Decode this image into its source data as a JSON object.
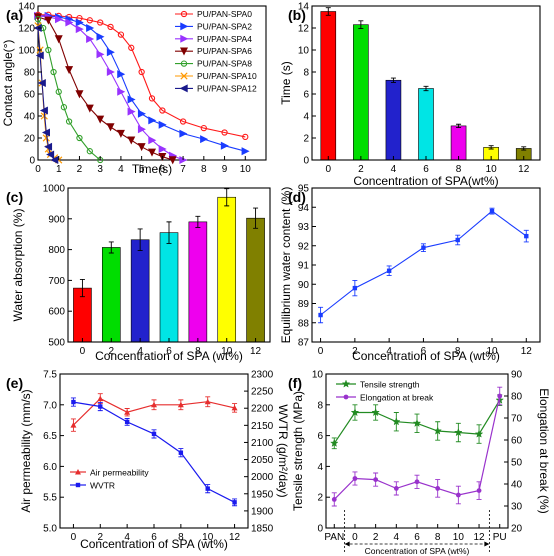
{
  "chart_data": [
    {
      "panel": "(a)",
      "type": "line",
      "xlabel": "Time(s)",
      "ylabel": "Contact angle(°)",
      "xlim": [
        0,
        11
      ],
      "ylim": [
        0,
        140
      ],
      "xticks": [
        0,
        1,
        2,
        3,
        4,
        5,
        6,
        7,
        8,
        9,
        10
      ],
      "yticks": [
        0,
        20,
        40,
        60,
        80,
        100,
        120,
        140
      ],
      "grid": false,
      "legend_position": "top-right",
      "series": [
        {
          "name": "PU/PAN-SPA0",
          "color": "#ff1a1a",
          "marker": "circle",
          "x": [
            0,
            0.5,
            1,
            1.5,
            2,
            2.5,
            3,
            3.5,
            4,
            4.5,
            5,
            5.5,
            6,
            7,
            8,
            9,
            10
          ],
          "y": [
            132,
            132,
            131,
            130,
            129,
            127,
            125,
            121,
            114,
            102,
            80,
            56,
            45,
            35,
            29,
            25,
            21
          ]
        },
        {
          "name": "PU/PAN-SPA2",
          "color": "#1a3cff",
          "marker": "triangle-right",
          "x": [
            0,
            0.5,
            1,
            1.5,
            2,
            2.5,
            3,
            3.5,
            4,
            4.5,
            5,
            5.5,
            6,
            7,
            8,
            9,
            10
          ],
          "y": [
            131,
            131,
            130,
            128,
            125,
            120,
            112,
            98,
            78,
            55,
            42,
            36,
            32,
            24,
            19,
            13,
            8
          ]
        },
        {
          "name": "PU/PAN-SPA4",
          "color": "#9933ff",
          "marker": "triangle-right",
          "x": [
            0,
            0.5,
            1,
            1.5,
            2,
            2.5,
            3,
            3.5,
            4,
            4.5,
            5,
            5.5,
            6,
            6.5,
            7
          ],
          "y": [
            131,
            130,
            128,
            125,
            119,
            110,
            96,
            80,
            62,
            44,
            28,
            18,
            10,
            4,
            0
          ]
        },
        {
          "name": "PU/PAN-SPA6",
          "color": "#800000",
          "marker": "triangle-down",
          "x": [
            0,
            0.5,
            1,
            1.5,
            2,
            2.5,
            3,
            3.5,
            4,
            4.5,
            5,
            5.5,
            6,
            6.5
          ],
          "y": [
            130,
            127,
            110,
            82,
            60,
            47,
            37,
            30,
            24,
            18,
            12,
            7,
            3,
            0
          ]
        },
        {
          "name": "PU/PAN-SPA8",
          "color": "#33a02c",
          "marker": "circle",
          "x": [
            0,
            0.25,
            0.5,
            0.75,
            1,
            1.25,
            1.5,
            2,
            2.5,
            3
          ],
          "y": [
            128,
            120,
            100,
            80,
            62,
            48,
            35,
            20,
            8,
            0
          ]
        },
        {
          "name": "PU/PAN-SPA10",
          "color": "#ff9900",
          "marker": "x",
          "x": [
            0,
            0.1,
            0.2,
            0.3,
            0.4,
            0.5,
            0.6,
            0.8,
            1.0
          ],
          "y": [
            122,
            100,
            70,
            40,
            20,
            10,
            5,
            2,
            0
          ]
        },
        {
          "name": "PU/PAN-SPA12",
          "color": "#1a1a8c",
          "marker": "triangle-left",
          "x": [
            0,
            0.1,
            0.2,
            0.3,
            0.4,
            0.5,
            0.6,
            0.8
          ],
          "y": [
            120,
            95,
            70,
            45,
            25,
            12,
            5,
            0
          ]
        }
      ]
    },
    {
      "panel": "(b)",
      "type": "bar",
      "xlabel": "Concentration of SPA(wt%)",
      "ylabel": "Time (s)",
      "categories": [
        "0",
        "2",
        "4",
        "6",
        "8",
        "10",
        "12"
      ],
      "values": [
        13.5,
        12.3,
        7.25,
        6.5,
        3.1,
        1.15,
        1.05
      ],
      "errors": [
        0.35,
        0.35,
        0.2,
        0.2,
        0.15,
        0.15,
        0.15
      ],
      "colors": [
        "#ff0000",
        "#00dd00",
        "#2222cc",
        "#00e5e5",
        "#ee00ee",
        "#ffff00",
        "#808000"
      ],
      "ylim": [
        0,
        14
      ],
      "yticks": [
        0,
        2,
        4,
        6,
        8,
        10,
        12,
        14
      ],
      "grid": false
    },
    {
      "panel": "(c)",
      "type": "bar",
      "xlabel": "Concentration of SPA (wt%)",
      "ylabel": "Water absorption (%)",
      "categories": [
        "0",
        "2",
        "4",
        "6",
        "8",
        "10",
        "12"
      ],
      "values": [
        675,
        807,
        832,
        855,
        890,
        970,
        902
      ],
      "errors": [
        28,
        18,
        35,
        35,
        18,
        28,
        33
      ],
      "colors": [
        "#ff0000",
        "#00dd00",
        "#2222cc",
        "#00e5e5",
        "#ee00ee",
        "#ffff00",
        "#808000"
      ],
      "ylim": [
        500,
        1000
      ],
      "yticks": [
        500,
        600,
        700,
        800,
        900,
        1000
      ],
      "grid": false
    },
    {
      "panel": "(d)",
      "type": "line",
      "xlabel": "Concentration of SPA (wt%)",
      "ylabel": "Equilibrium water content (%)",
      "color": "#1a3cff",
      "x": [
        0,
        2,
        4,
        6,
        8,
        10,
        12
      ],
      "y": [
        88.4,
        89.8,
        90.7,
        91.9,
        92.3,
        93.8,
        92.5
      ],
      "errors": [
        0.4,
        0.4,
        0.25,
        0.2,
        0.25,
        0.15,
        0.3
      ],
      "xlim": [
        -0.5,
        12.8
      ],
      "ylim": [
        87,
        95
      ],
      "xticks": [
        0,
        2,
        4,
        6,
        8,
        10,
        12
      ],
      "yticks": [
        87,
        88,
        89,
        90,
        91,
        92,
        93,
        94,
        95
      ],
      "grid": false
    },
    {
      "panel": "(e)",
      "type": "line",
      "xlabel": "Concentration of SPA (wt%)",
      "ylabel": "Air permeability (mm/s)",
      "ylabel_right": "WVTR (g/m²/day)",
      "xlim": [
        -1,
        13
      ],
      "ylim": [
        5.0,
        7.5
      ],
      "ylim_right": [
        1850,
        2300
      ],
      "xticks": [
        0,
        2,
        4,
        6,
        8,
        10,
        12
      ],
      "yticks": [
        5.0,
        5.5,
        6.0,
        6.5,
        7.0,
        7.5
      ],
      "yticks_right": [
        1850,
        1900,
        1950,
        2000,
        2050,
        2100,
        2150,
        2200,
        2250,
        2300
      ],
      "legend_position": "bottom-left",
      "grid": false,
      "series": [
        {
          "name": "Air permeability",
          "color": "#e62e2e",
          "axis": "left",
          "x": [
            0,
            2,
            4,
            6,
            8,
            10,
            12
          ],
          "y": [
            6.67,
            7.1,
            6.88,
            7.0,
            7.0,
            7.05,
            6.95
          ],
          "errors": [
            0.1,
            0.08,
            0.06,
            0.08,
            0.08,
            0.08,
            0.07
          ]
        },
        {
          "name": "WVTR",
          "color": "#1a1aee",
          "axis": "right",
          "x": [
            0,
            2,
            4,
            6,
            8,
            10,
            12
          ],
          "y": [
            2218,
            2205,
            2160,
            2125,
            2070,
            1965,
            1925
          ],
          "errors": [
            12,
            12,
            10,
            12,
            12,
            12,
            10
          ]
        }
      ]
    },
    {
      "panel": "(f)",
      "type": "line",
      "ylabel": "Tensile strength (MPa)",
      "ylabel_right": "Elongation at break (%)",
      "x_annotation": "Concentration of SPA (wt%)",
      "categories": [
        "PAN",
        "0",
        "2",
        "4",
        "6",
        "8",
        "10",
        "12",
        "PU"
      ],
      "ylim": [
        0,
        10
      ],
      "ylim_right": [
        20,
        90
      ],
      "yticks": [
        0,
        2,
        4,
        6,
        8,
        10
      ],
      "yticks_right": [
        20,
        30,
        40,
        50,
        60,
        70,
        80,
        90
      ],
      "legend_position": "top-left",
      "grid": false,
      "series": [
        {
          "name": "Tensile strength",
          "color": "#228b22",
          "axis": "left",
          "marker": "star",
          "values": [
            5.5,
            7.5,
            7.5,
            6.9,
            6.8,
            6.3,
            6.2,
            6.1,
            8.3
          ],
          "errors": [
            0.35,
            0.5,
            0.5,
            0.6,
            0.6,
            0.6,
            0.6,
            0.6,
            0.35
          ]
        },
        {
          "name": "Elongation at break",
          "color": "#9932cc",
          "axis": "right",
          "marker": "circle",
          "values": [
            33,
            42.5,
            42,
            38,
            41,
            38,
            35,
            37,
            80
          ],
          "errors": [
            3,
            3,
            3,
            3,
            3,
            4,
            4,
            4,
            4
          ]
        }
      ]
    }
  ]
}
